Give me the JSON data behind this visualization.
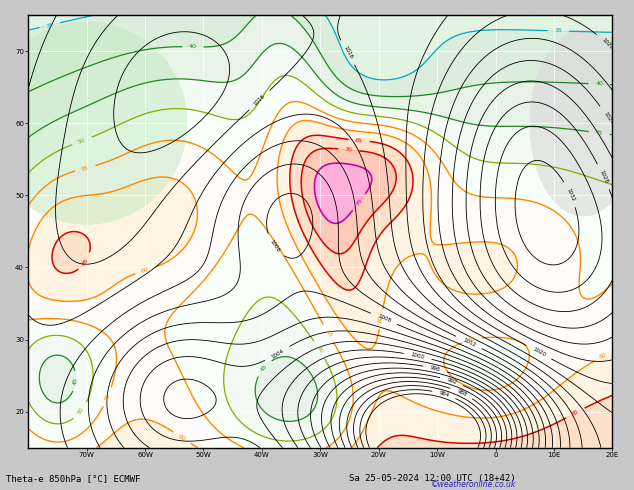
{
  "title_left": "Theta-e 850hPa [°C] ECMWF",
  "title_right": "Sa 25-05-2024 12:00 UTC (18+42)",
  "copyright": "©weatheronline.co.uk",
  "background_color": "#c8c8c8",
  "map_background": "#ffffff",
  "figsize": [
    6.34,
    4.9
  ],
  "dpi": 100,
  "lon_min": -80,
  "lon_max": 20,
  "lat_min": 15,
  "lat_max": 75,
  "grid_lons": [
    -70,
    -60,
    -50,
    -40,
    -30,
    -20,
    -10,
    0,
    10,
    20
  ],
  "grid_lats": [
    20,
    30,
    40,
    50,
    60,
    70
  ]
}
